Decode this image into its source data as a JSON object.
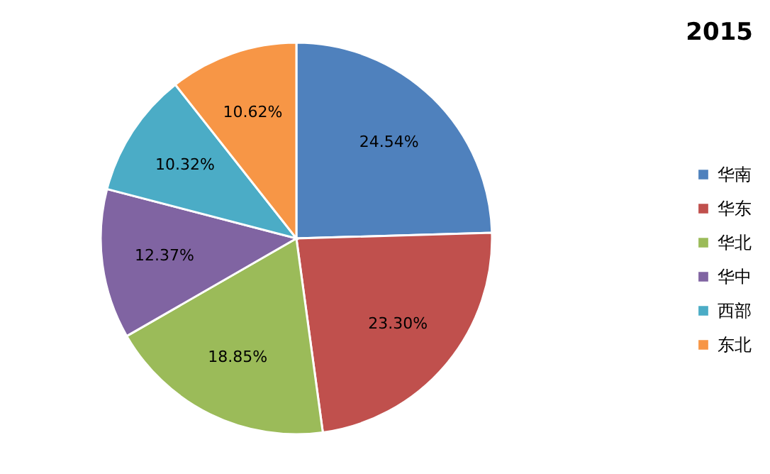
{
  "chart_data": {
    "type": "pie",
    "title": "2015",
    "categories": [
      "华南",
      "华东",
      "华北",
      "华中",
      "西部",
      "东北"
    ],
    "values": [
      24.54,
      23.3,
      18.85,
      12.37,
      10.32,
      10.62
    ],
    "value_labels": [
      "24.54%",
      "23.30%",
      "18.85%",
      "12.37%",
      "10.32%",
      "10.62%"
    ],
    "colors": [
      "#4f81bd",
      "#c0504d",
      "#9bbb59",
      "#8064a2",
      "#4bacc6",
      "#f79646"
    ],
    "legend": "right"
  }
}
